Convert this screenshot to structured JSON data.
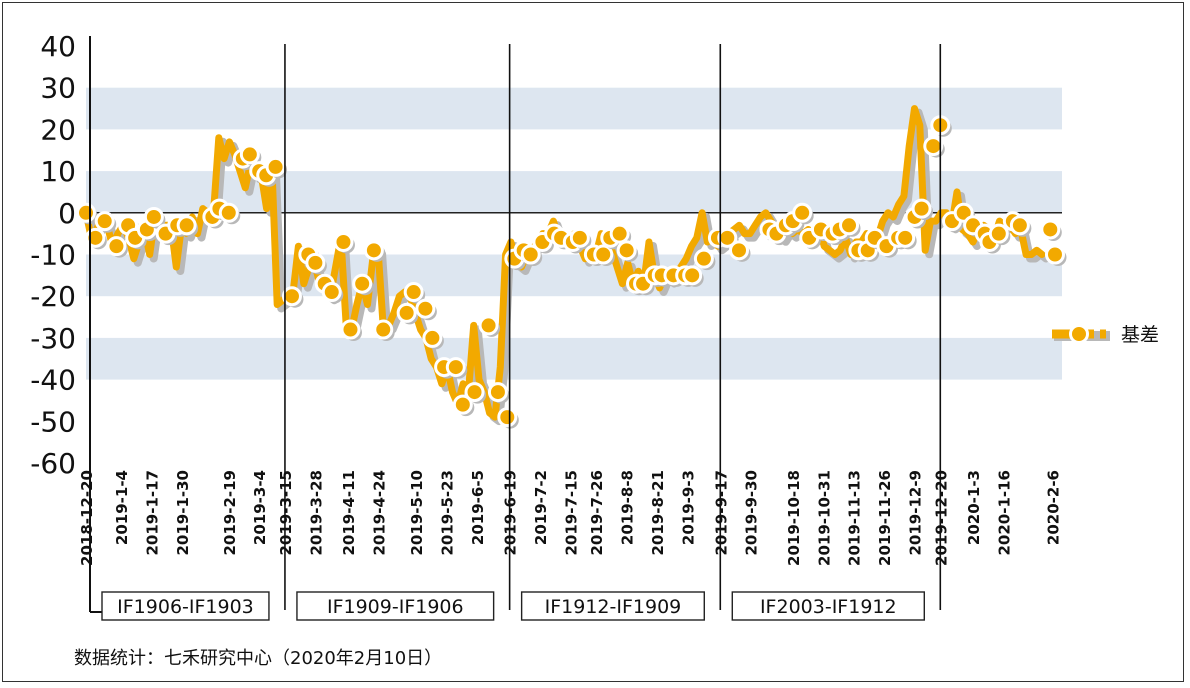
{
  "chart_data": {
    "type": "line",
    "x_start": "2018-12-20",
    "x_end": "2020-2-10",
    "ylim": [
      -60,
      40
    ],
    "yticks": [
      40,
      30,
      20,
      10,
      0,
      -10,
      -20,
      -30,
      -40,
      -50,
      -60
    ],
    "xtick_labels": [
      {
        "label": "2018-12-20",
        "date": "2018-12-20"
      },
      {
        "label": "2019-1-4",
        "date": "2019-01-04"
      },
      {
        "label": "2019-1-17",
        "date": "2019-01-17"
      },
      {
        "label": "2019-1-30",
        "date": "2019-01-30"
      },
      {
        "label": "2019-2-19",
        "date": "2019-02-19"
      },
      {
        "label": "2019-3-4",
        "date": "2019-03-04"
      },
      {
        "label": "2019-3-15",
        "date": "2019-03-15"
      },
      {
        "label": "2019-3-28",
        "date": "2019-03-28"
      },
      {
        "label": "2019-4-11",
        "date": "2019-04-11"
      },
      {
        "label": "2019-4-24",
        "date": "2019-04-24"
      },
      {
        "label": "2019-5-10",
        "date": "2019-05-10"
      },
      {
        "label": "2019-5-23",
        "date": "2019-05-23"
      },
      {
        "label": "2019-6-5",
        "date": "2019-06-05"
      },
      {
        "label": "2019-6-19",
        "date": "2019-06-19"
      },
      {
        "label": "2019-7-2",
        "date": "2019-07-02"
      },
      {
        "label": "2019-7-15",
        "date": "2019-07-15"
      },
      {
        "label": "2019-7-26",
        "date": "2019-07-26"
      },
      {
        "label": "2019-8-8",
        "date": "2019-08-08"
      },
      {
        "label": "2019-8-21",
        "date": "2019-08-21"
      },
      {
        "label": "2019-9-3",
        "date": "2019-09-03"
      },
      {
        "label": "2019-9-17",
        "date": "2019-09-17"
      },
      {
        "label": "2019-9-30",
        "date": "2019-09-30"
      },
      {
        "label": "2019-10-18",
        "date": "2019-10-18"
      },
      {
        "label": "2019-10-31",
        "date": "2019-10-31"
      },
      {
        "label": "2019-11-13",
        "date": "2019-11-13"
      },
      {
        "label": "2019-11-26",
        "date": "2019-11-26"
      },
      {
        "label": "2019-12-9",
        "date": "2019-12-09"
      },
      {
        "label": "2019-12-20",
        "date": "2019-12-20"
      },
      {
        "label": "2020-1-3",
        "date": "2020-01-03"
      },
      {
        "label": "2020-1-16",
        "date": "2020-01-16"
      },
      {
        "label": "2020-2-6",
        "date": "2020-02-06"
      }
    ],
    "series": [
      {
        "name": "基差",
        "color": "#f2a900",
        "values": [
          0,
          -6,
          -4,
          -1,
          -3,
          -8,
          -5,
          -3,
          -6,
          -11,
          -7,
          -4,
          -10,
          -1,
          -5,
          -3,
          -3,
          -13,
          -3,
          -5,
          -1,
          -5,
          1,
          0,
          0,
          18,
          13,
          17,
          14,
          10,
          6,
          12,
          9,
          9,
          1,
          11,
          -22,
          -21,
          -20,
          -19,
          -8,
          -17,
          -13,
          -12,
          -17,
          -18,
          -20,
          -13,
          -6,
          -27,
          -28,
          -22,
          -17,
          -22,
          -11,
          -9,
          -28,
          -27,
          -24,
          -20,
          -19,
          -20,
          -24,
          -28,
          -30,
          -35,
          -37,
          -41,
          -37,
          -43,
          -46,
          -41,
          -43,
          -27,
          -40,
          -43,
          -48,
          -49,
          -37,
          -10,
          -7,
          -12,
          -13,
          -10,
          -9,
          -7,
          -5,
          -5,
          -2,
          -6,
          -6,
          -7,
          -5,
          -8,
          -11,
          -9,
          -10,
          -5,
          -6,
          -9,
          -13,
          -17,
          -12,
          -17,
          -14,
          -17,
          -7,
          -15,
          -18,
          -15,
          -16,
          -15,
          -13,
          -11,
          -8,
          -6,
          0,
          -7,
          -6,
          -8,
          -7,
          -5,
          -4,
          -3,
          -5,
          -5,
          -3,
          -1,
          0,
          -2,
          -5,
          -6,
          -4,
          -5,
          -4,
          -5,
          -4,
          -6,
          -3,
          -8,
          -9,
          -10,
          -9,
          -6,
          -10,
          -7,
          -7,
          -5,
          -6,
          -6,
          -2,
          0,
          -1,
          2,
          4,
          16,
          25,
          21,
          -9,
          -2,
          -2,
          0,
          0,
          -3,
          5,
          -4,
          -5,
          -7,
          -4,
          -3,
          -4,
          -6,
          -2,
          -3,
          -3,
          -5,
          -4,
          -10,
          -10,
          -9,
          -10
        ]
      }
    ],
    "marker_points": [
      {
        "date": "2018-12-20",
        "y": 0
      },
      {
        "date": "2018-12-24",
        "y": -6
      },
      {
        "date": "2018-12-28",
        "y": -2
      },
      {
        "date": "2019-01-02",
        "y": -8
      },
      {
        "date": "2019-01-07",
        "y": -3
      },
      {
        "date": "2019-01-10",
        "y": -6
      },
      {
        "date": "2019-01-15",
        "y": -4
      },
      {
        "date": "2019-01-18",
        "y": -1
      },
      {
        "date": "2019-01-23",
        "y": -5
      },
      {
        "date": "2019-01-28",
        "y": -3
      },
      {
        "date": "2019-02-01",
        "y": -3
      },
      {
        "date": "2019-02-12",
        "y": -1
      },
      {
        "date": "2019-02-15",
        "y": 1
      },
      {
        "date": "2019-02-19",
        "y": 0
      },
      {
        "date": "2019-02-25",
        "y": 13
      },
      {
        "date": "2019-02-28",
        "y": 14
      },
      {
        "date": "2019-03-04",
        "y": 10
      },
      {
        "date": "2019-03-07",
        "y": 9
      },
      {
        "date": "2019-03-11",
        "y": 11
      },
      {
        "date": "2019-03-18",
        "y": -20
      },
      {
        "date": "2019-03-25",
        "y": -10
      },
      {
        "date": "2019-03-28",
        "y": -12
      },
      {
        "date": "2019-04-01",
        "y": -17
      },
      {
        "date": "2019-04-04",
        "y": -19
      },
      {
        "date": "2019-04-09",
        "y": -7
      },
      {
        "date": "2019-04-12",
        "y": -28
      },
      {
        "date": "2019-04-17",
        "y": -17
      },
      {
        "date": "2019-04-22",
        "y": -9
      },
      {
        "date": "2019-04-26",
        "y": -28
      },
      {
        "date": "2019-05-06",
        "y": -24
      },
      {
        "date": "2019-05-09",
        "y": -19
      },
      {
        "date": "2019-05-14",
        "y": -23
      },
      {
        "date": "2019-05-17",
        "y": -30
      },
      {
        "date": "2019-05-22",
        "y": -37
      },
      {
        "date": "2019-05-27",
        "y": -37
      },
      {
        "date": "2019-05-30",
        "y": -46
      },
      {
        "date": "2019-06-04",
        "y": -43
      },
      {
        "date": "2019-06-10",
        "y": -27
      },
      {
        "date": "2019-06-14",
        "y": -43
      },
      {
        "date": "2019-06-18",
        "y": -49
      },
      {
        "date": "2019-06-21",
        "y": -11
      },
      {
        "date": "2019-06-25",
        "y": -9
      },
      {
        "date": "2019-06-28",
        "y": -10
      },
      {
        "date": "2019-07-03",
        "y": -7
      },
      {
        "date": "2019-07-08",
        "y": -5
      },
      {
        "date": "2019-07-11",
        "y": -6
      },
      {
        "date": "2019-07-16",
        "y": -7
      },
      {
        "date": "2019-07-19",
        "y": -6
      },
      {
        "date": "2019-07-25",
        "y": -10
      },
      {
        "date": "2019-07-29",
        "y": -10
      },
      {
        "date": "2019-08-01",
        "y": -6
      },
      {
        "date": "2019-08-05",
        "y": -5
      },
      {
        "date": "2019-08-08",
        "y": -9
      },
      {
        "date": "2019-08-12",
        "y": -17
      },
      {
        "date": "2019-08-15",
        "y": -17
      },
      {
        "date": "2019-08-20",
        "y": -15
      },
      {
        "date": "2019-08-23",
        "y": -15
      },
      {
        "date": "2019-08-28",
        "y": -15
      },
      {
        "date": "2019-09-02",
        "y": -15
      },
      {
        "date": "2019-09-05",
        "y": -15
      },
      {
        "date": "2019-09-10",
        "y": -11
      },
      {
        "date": "2019-09-16",
        "y": -6
      },
      {
        "date": "2019-09-20",
        "y": -6
      },
      {
        "date": "2019-09-25",
        "y": -9
      },
      {
        "date": "2019-10-08",
        "y": -4
      },
      {
        "date": "2019-10-11",
        "y": -5
      },
      {
        "date": "2019-10-15",
        "y": -3
      },
      {
        "date": "2019-10-18",
        "y": -2
      },
      {
        "date": "2019-10-22",
        "y": 0
      },
      {
        "date": "2019-10-25",
        "y": -6
      },
      {
        "date": "2019-10-30",
        "y": -4
      },
      {
        "date": "2019-11-04",
        "y": -5
      },
      {
        "date": "2019-11-07",
        "y": -4
      },
      {
        "date": "2019-11-11",
        "y": -3
      },
      {
        "date": "2019-11-15",
        "y": -9
      },
      {
        "date": "2019-11-19",
        "y": -9
      },
      {
        "date": "2019-11-22",
        "y": -6
      },
      {
        "date": "2019-11-27",
        "y": -8
      },
      {
        "date": "2019-12-02",
        "y": -6
      },
      {
        "date": "2019-12-05",
        "y": -6
      },
      {
        "date": "2019-12-09",
        "y": -1
      },
      {
        "date": "2019-12-12",
        "y": 1
      },
      {
        "date": "2019-12-17",
        "y": 16
      },
      {
        "date": "2019-12-20",
        "y": 21
      },
      {
        "date": "2019-12-25",
        "y": -2
      },
      {
        "date": "2019-12-30",
        "y": 0
      },
      {
        "date": "2020-01-03",
        "y": -3
      },
      {
        "date": "2020-01-08",
        "y": -5
      },
      {
        "date": "2020-01-10",
        "y": -7
      },
      {
        "date": "2020-01-14",
        "y": -5
      },
      {
        "date": "2020-01-20",
        "y": -2
      },
      {
        "date": "2020-01-23",
        "y": -3
      },
      {
        "date": "2020-02-05",
        "y": -4
      },
      {
        "date": "2020-02-07",
        "y": -10
      }
    ],
    "contract_switch_dates": [
      "2019-03-15",
      "2019-06-19",
      "2019-09-17",
      "2019-12-20"
    ],
    "period_labels": [
      {
        "label": "IF1906-IF1903"
      },
      {
        "label": "IF1909-IF1906"
      },
      {
        "label": "IF1912-IF1909"
      },
      {
        "label": "IF2003-IF1912"
      }
    ],
    "legend": {
      "label": "基差",
      "placement": "right"
    },
    "band_color": "#dde6f0",
    "line_color": "#f2a900",
    "shadow_color": "#b8b8b8",
    "grid": "alternating horizontal bands"
  },
  "source_note": "数据统计：七禾研究中心（2020年2月10日）"
}
